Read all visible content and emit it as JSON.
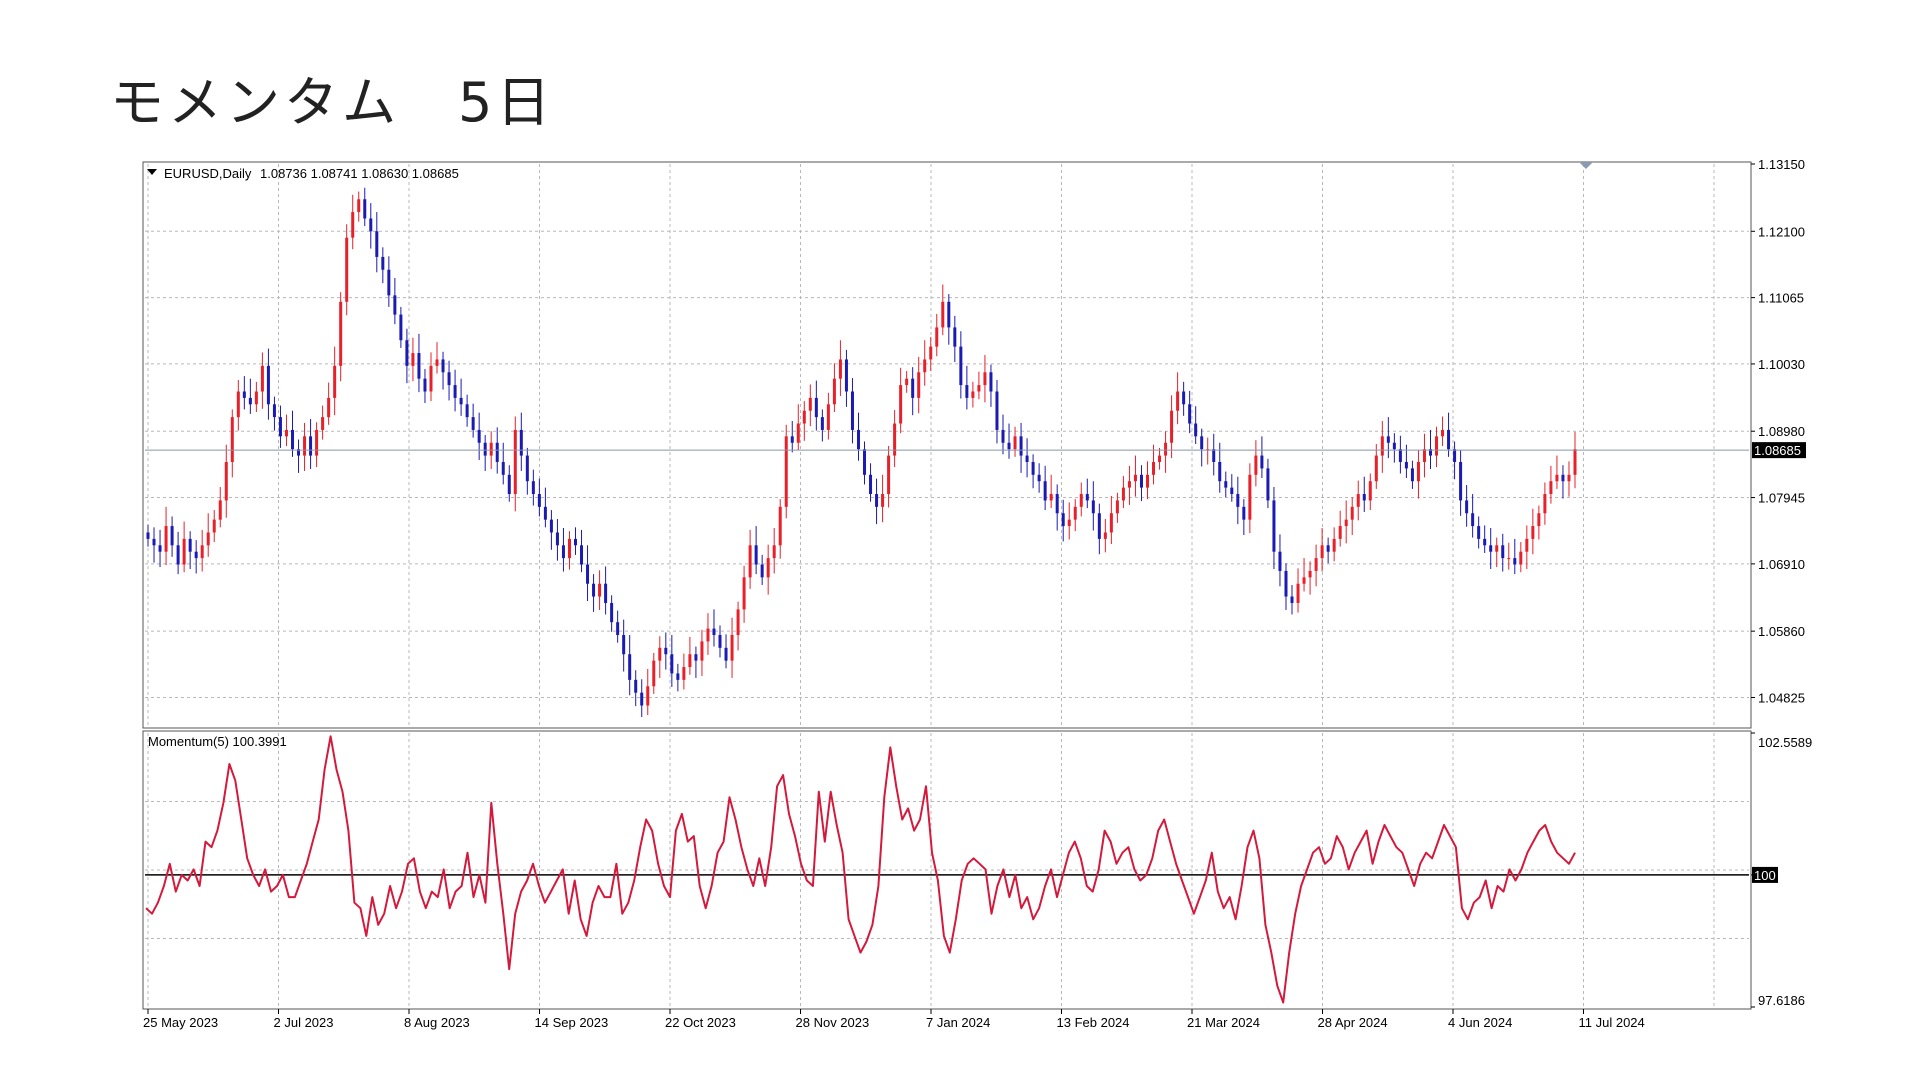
{
  "page": {
    "title": "モメンタム　5日"
  },
  "chart_data": [
    {
      "type": "candlestick",
      "title": "EURUSD,Daily",
      "ohlc_header": "1.08736 1.08741 1.08630 1.08685",
      "ylim": [
        1.0438,
        1.1315
      ],
      "y_ticks": [
        "1.13150",
        "1.12100",
        "1.11065",
        "1.10030",
        "1.08980",
        "1.07945",
        "1.06910",
        "1.05860",
        "1.04825"
      ],
      "current_price_label": "1.08685",
      "current_price": 1.08685,
      "colors": {
        "bull": "#e8202a",
        "bear": "#1a1ab4",
        "grid": "#b8b8b8",
        "price_line": "#8896a8"
      },
      "x_ticks": [
        "25 May 2023",
        "2 Jul 2023",
        "8 Aug 2023",
        "14 Sep 2023",
        "22 Oct 2023",
        "28 Nov 2023",
        "7 Jan 2024",
        "13 Feb 2024",
        "21 Mar 2024",
        "28 Apr 2024",
        "4 Jun 2024",
        "11 Jul 2024"
      ],
      "close_series": [
        1.073,
        1.072,
        1.071,
        1.075,
        1.072,
        1.069,
        1.073,
        1.071,
        1.07,
        1.072,
        1.074,
        1.076,
        1.079,
        1.085,
        1.092,
        1.096,
        1.095,
        1.094,
        1.096,
        1.1,
        1.094,
        1.092,
        1.089,
        1.09,
        1.087,
        1.086,
        1.089,
        1.086,
        1.09,
        1.092,
        1.095,
        1.1,
        1.11,
        1.12,
        1.124,
        1.126,
        1.123,
        1.121,
        1.117,
        1.115,
        1.111,
        1.108,
        1.104,
        1.1,
        1.102,
        1.098,
        1.096,
        1.1,
        1.101,
        1.099,
        1.097,
        1.095,
        1.094,
        1.092,
        1.09,
        1.088,
        1.086,
        1.088,
        1.085,
        1.083,
        1.08,
        1.09,
        1.086,
        1.082,
        1.08,
        1.078,
        1.076,
        1.074,
        1.072,
        1.07,
        1.073,
        1.072,
        1.069,
        1.066,
        1.064,
        1.066,
        1.063,
        1.06,
        1.058,
        1.055,
        1.051,
        1.049,
        1.047,
        1.05,
        1.054,
        1.056,
        1.055,
        1.052,
        1.051,
        1.053,
        1.055,
        1.054,
        1.057,
        1.059,
        1.058,
        1.056,
        1.054,
        1.058,
        1.062,
        1.067,
        1.072,
        1.069,
        1.067,
        1.07,
        1.072,
        1.078,
        1.089,
        1.088,
        1.091,
        1.093,
        1.095,
        1.092,
        1.09,
        1.094,
        1.098,
        1.101,
        1.096,
        1.09,
        1.087,
        1.083,
        1.08,
        1.078,
        1.08,
        1.086,
        1.091,
        1.097,
        1.098,
        1.095,
        1.099,
        1.101,
        1.103,
        1.106,
        1.11,
        1.106,
        1.103,
        1.097,
        1.095,
        1.096,
        1.097,
        1.099,
        1.096,
        1.09,
        1.088,
        1.087,
        1.089,
        1.086,
        1.085,
        1.083,
        1.082,
        1.079,
        1.08,
        1.077,
        1.075,
        1.076,
        1.078,
        1.08,
        1.079,
        1.077,
        1.073,
        1.074,
        1.077,
        1.079,
        1.081,
        1.082,
        1.083,
        1.081,
        1.083,
        1.085,
        1.086,
        1.088,
        1.093,
        1.096,
        1.094,
        1.091,
        1.089,
        1.087,
        1.087,
        1.085,
        1.082,
        1.081,
        1.08,
        1.078,
        1.076,
        1.083,
        1.086,
        1.084,
        1.079,
        1.071,
        1.068,
        1.064,
        1.063,
        1.066,
        1.067,
        1.068,
        1.07,
        1.072,
        1.071,
        1.073,
        1.075,
        1.076,
        1.078,
        1.08,
        1.079,
        1.082,
        1.086,
        1.089,
        1.088,
        1.087,
        1.085,
        1.084,
        1.082,
        1.085,
        1.087,
        1.086,
        1.089,
        1.09,
        1.087,
        1.085,
        1.079,
        1.077,
        1.075,
        1.073,
        1.072,
        1.071,
        1.072,
        1.07,
        1.07,
        1.069,
        1.071,
        1.073,
        1.075,
        1.077,
        1.08,
        1.082,
        1.083,
        1.082,
        1.083,
        1.087
      ]
    },
    {
      "type": "line",
      "title": "Momentum(5) 100.3991",
      "ylim": [
        97.6186,
        102.5589
      ],
      "y_ticks": [
        "102.5589",
        "100",
        "97.6186"
      ],
      "reference_level": 100,
      "reference_label": "100",
      "colors": {
        "line": "#d41a3c",
        "reference": "#000000"
      },
      "values": [
        99.4,
        99.3,
        99.5,
        99.8,
        100.2,
        99.7,
        100.0,
        99.9,
        100.1,
        99.8,
        100.6,
        100.5,
        100.8,
        101.3,
        102.0,
        101.7,
        101.0,
        100.3,
        100.0,
        99.8,
        100.1,
        99.7,
        99.8,
        100.0,
        99.6,
        99.6,
        99.9,
        100.2,
        100.6,
        101.0,
        101.9,
        102.5,
        101.9,
        101.5,
        100.8,
        99.5,
        99.4,
        98.9,
        99.6,
        99.1,
        99.3,
        99.8,
        99.4,
        99.7,
        100.2,
        100.3,
        99.7,
        99.4,
        99.7,
        99.6,
        100.1,
        99.4,
        99.7,
        99.8,
        100.4,
        99.6,
        100.0,
        99.5,
        101.3,
        100.2,
        99.3,
        98.3,
        99.3,
        99.7,
        99.9,
        100.2,
        99.8,
        99.5,
        99.7,
        99.9,
        100.1,
        99.3,
        99.9,
        99.2,
        98.9,
        99.5,
        99.8,
        99.6,
        99.6,
        100.2,
        99.3,
        99.5,
        99.9,
        100.5,
        101.0,
        100.8,
        100.2,
        99.8,
        99.6,
        100.8,
        101.1,
        100.6,
        100.7,
        99.8,
        99.4,
        99.8,
        100.4,
        100.6,
        101.4,
        101.0,
        100.5,
        100.1,
        99.8,
        100.3,
        99.8,
        100.5,
        101.6,
        101.8,
        101.1,
        100.7,
        100.2,
        99.9,
        99.8,
        101.5,
        100.6,
        101.5,
        100.9,
        100.4,
        99.2,
        98.9,
        98.6,
        98.8,
        99.1,
        99.8,
        101.4,
        102.3,
        101.6,
        101.0,
        101.2,
        100.8,
        101.0,
        101.6,
        100.4,
        99.9,
        98.9,
        98.6,
        99.2,
        99.9,
        100.2,
        100.3,
        100.2,
        100.1,
        99.3,
        99.8,
        100.1,
        99.6,
        100.0,
        99.4,
        99.6,
        99.2,
        99.4,
        99.8,
        100.1,
        99.6,
        100.0,
        100.4,
        100.6,
        100.3,
        99.8,
        99.7,
        100.1,
        100.8,
        100.6,
        100.2,
        100.4,
        100.5,
        100.1,
        99.9,
        100.0,
        100.3,
        100.8,
        101.0,
        100.6,
        100.2,
        99.9,
        99.6,
        99.3,
        99.6,
        99.9,
        100.4,
        99.7,
        99.4,
        99.6,
        99.2,
        99.8,
        100.5,
        100.8,
        100.3,
        99.1,
        98.6,
        98.0,
        97.7,
        98.6,
        99.3,
        99.8,
        100.1,
        100.4,
        100.5,
        100.2,
        100.3,
        100.7,
        100.5,
        100.1,
        100.4,
        100.6,
        100.8,
        100.2,
        100.6,
        100.9,
        100.7,
        100.5,
        100.4,
        100.1,
        99.8,
        100.2,
        100.4,
        100.3,
        100.6,
        100.9,
        100.7,
        100.5,
        99.4,
        99.2,
        99.5,
        99.6,
        99.9,
        99.4,
        99.8,
        99.7,
        100.1,
        99.9,
        100.1,
        100.4,
        100.6,
        100.8,
        100.9,
        100.6,
        100.4,
        100.3,
        100.2,
        100.4
      ]
    }
  ]
}
